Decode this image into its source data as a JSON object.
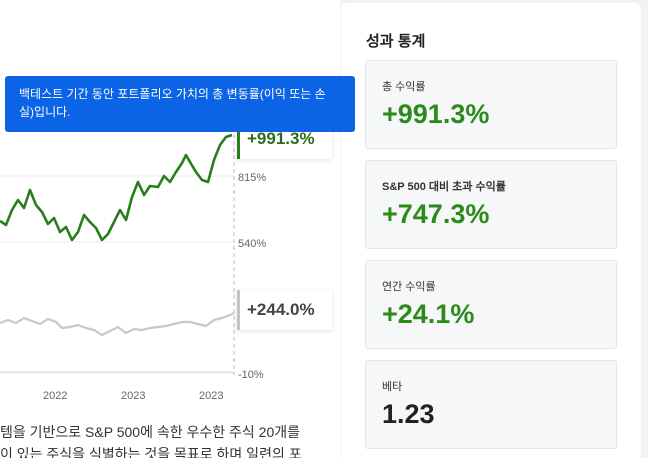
{
  "chart": {
    "axis_labels": [
      "815%",
      "540%",
      "-10%"
    ],
    "x_labels": [
      "2022",
      "2023",
      "2023"
    ],
    "strategy_end": "+991.3%",
    "benchmark_end": "+244.0%",
    "colors": {
      "strategy": "#2a7d1d",
      "benchmark": "#c8c8c8"
    }
  },
  "tooltip": {
    "line1": "백테스트 기간 동안 포트폴리오 가치의 총 변동률(이익 또는 손",
    "line2": "실)입니다."
  },
  "description": {
    "line1": "템을 기반으로 S&P 500에 속한 우수한 주식 20개를",
    "line2": "이 있는 주식을 식별하는 것을 목표로 하며 일련의 포"
  },
  "stats_panel": {
    "title": "성과 통계",
    "cards": [
      {
        "label": "총 수익률",
        "value": "+991.3%"
      },
      {
        "label": "S&P 500 대비 초과 수익률",
        "value": "+747.3%"
      },
      {
        "label": "연간 수익률",
        "value": "+24.1%"
      },
      {
        "label": "베타",
        "value": "1.23"
      }
    ]
  }
}
